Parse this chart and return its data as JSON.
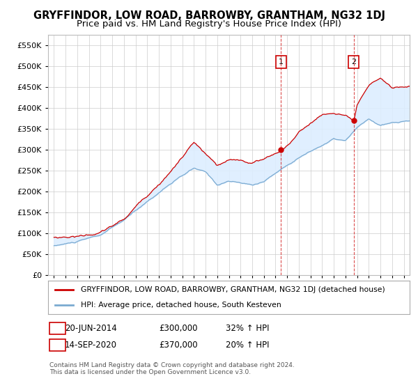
{
  "title": "GRYFFINDOR, LOW ROAD, BARROWBY, GRANTHAM, NG32 1DJ",
  "subtitle": "Price paid vs. HM Land Registry's House Price Index (HPI)",
  "legend_line1": "GRYFFINDOR, LOW ROAD, BARROWBY, GRANTHAM, NG32 1DJ (detached house)",
  "legend_line2": "HPI: Average price, detached house, South Kesteven",
  "sale1_date": "20-JUN-2014",
  "sale1_price": 300000,
  "sale1_year": 2014.47,
  "sale2_date": "14-SEP-2020",
  "sale2_price": 370000,
  "sale2_year": 2020.71,
  "footnote": "Contains HM Land Registry data © Crown copyright and database right 2024.\nThis data is licensed under the Open Government Licence v3.0.",
  "ylim": [
    0,
    575000
  ],
  "yticks": [
    0,
    50000,
    100000,
    150000,
    200000,
    250000,
    300000,
    350000,
    400000,
    450000,
    500000,
    550000
  ],
  "xlim_start": 1994.5,
  "xlim_end": 2025.5,
  "red_color": "#cc0000",
  "blue_color": "#7aaad0",
  "fill_color": "#ddeeff",
  "background_color": "#ffffff",
  "grid_color": "#cccccc",
  "title_fontsize": 10.5,
  "subtitle_fontsize": 9.5
}
